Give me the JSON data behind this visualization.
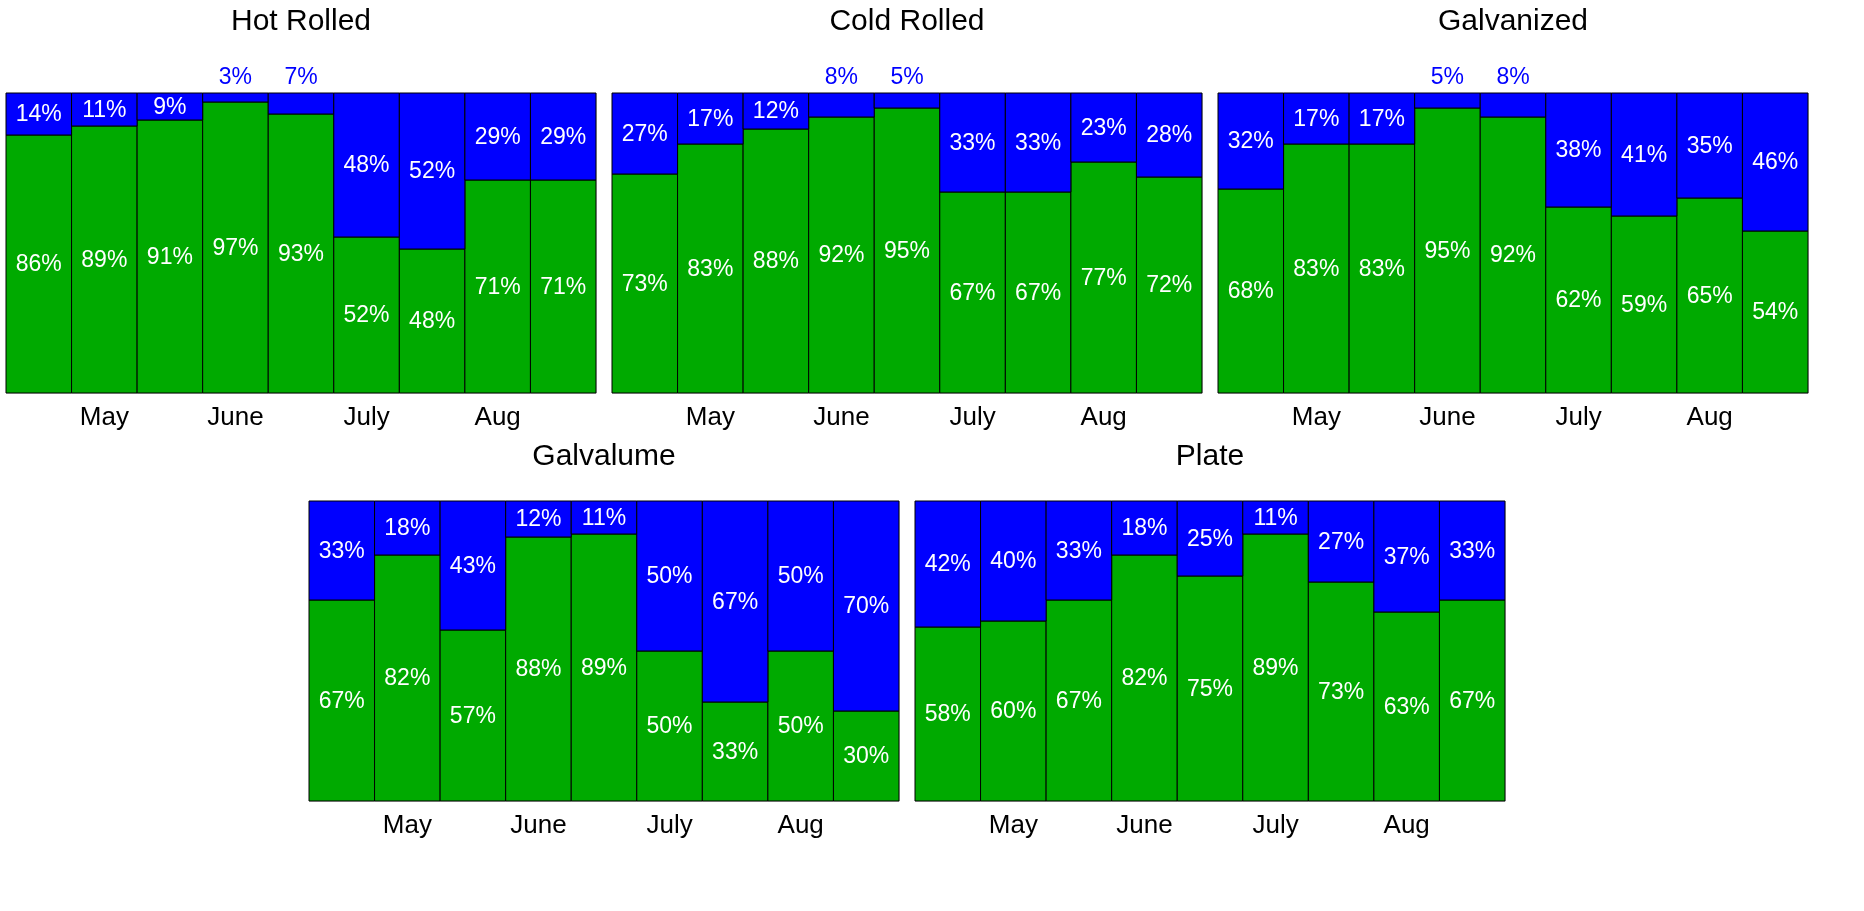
{
  "chart_data": [
    {
      "type": "bar",
      "title": "Hot Rolled",
      "stacked": true,
      "tick_labels": "x",
      "categories": [
        null,
        "May",
        null,
        "June",
        null,
        "July",
        null,
        "Aug",
        null
      ],
      "series": [
        {
          "color": "#00aa00",
          "values": [
            86,
            89,
            91,
            97,
            93,
            52,
            48,
            71,
            71
          ],
          "value_labels": [
            "86%",
            "89%",
            "91%",
            "97%",
            "93%",
            "52%",
            "48%",
            "71%",
            "71%"
          ]
        },
        {
          "color": "#0000ff",
          "values": [
            14,
            11,
            9,
            3,
            7,
            48,
            52,
            29,
            29
          ],
          "value_labels": [
            "14%",
            "11%",
            "9%",
            "3%",
            "7%",
            "48%",
            "52%",
            "29%",
            "29%"
          ]
        }
      ]
    },
    {
      "type": "bar",
      "title": "Cold Rolled",
      "stacked": true,
      "tick_labels": "x",
      "categories": [
        null,
        "May",
        null,
        "June",
        null,
        "July",
        null,
        "Aug",
        null
      ],
      "series": [
        {
          "color": "#00aa00",
          "values": [
            73,
            83,
            88,
            92,
            95,
            67,
            67,
            77,
            72
          ],
          "value_labels": [
            "73%",
            "83%",
            "88%",
            "92%",
            "95%",
            "67%",
            "67%",
            "77%",
            "72%"
          ]
        },
        {
          "color": "#0000ff",
          "values": [
            27,
            17,
            12,
            8,
            5,
            33,
            33,
            23,
            28
          ],
          "value_labels": [
            "27%",
            "17%",
            "12%",
            "8%",
            "5%",
            "33%",
            "33%",
            "23%",
            "28%"
          ]
        }
      ]
    },
    {
      "type": "bar",
      "title": "Galvanized",
      "stacked": true,
      "tick_labels": "x",
      "categories": [
        null,
        "May",
        null,
        "June",
        null,
        "July",
        null,
        "Aug",
        null
      ],
      "series": [
        {
          "color": "#00aa00",
          "values": [
            68,
            83,
            83,
            95,
            92,
            62,
            59,
            65,
            54
          ],
          "value_labels": [
            "68%",
            "83%",
            "83%",
            "95%",
            "92%",
            "62%",
            "59%",
            "65%",
            "54%"
          ]
        },
        {
          "color": "#0000ff",
          "values": [
            32,
            17,
            17,
            5,
            8,
            38,
            41,
            35,
            46
          ],
          "value_labels": [
            "32%",
            "17%",
            "17%",
            "5%",
            "8%",
            "38%",
            "41%",
            "35%",
            "46%"
          ]
        }
      ]
    },
    {
      "type": "bar",
      "title": "Galvalume",
      "stacked": true,
      "tick_labels": "x",
      "categories": [
        null,
        "May",
        null,
        "June",
        null,
        "July",
        null,
        "Aug",
        null
      ],
      "series": [
        {
          "color": "#00aa00",
          "values": [
            67,
            82,
            57,
            88,
            89,
            50,
            33,
            50,
            30
          ],
          "value_labels": [
            "67%",
            "82%",
            "57%",
            "88%",
            "89%",
            "50%",
            "33%",
            "50%",
            "30%"
          ]
        },
        {
          "color": "#0000ff",
          "values": [
            33,
            18,
            43,
            12,
            11,
            50,
            67,
            50,
            70
          ],
          "value_labels": [
            "33%",
            "18%",
            "43%",
            "12%",
            "11%",
            "50%",
            "67%",
            "50%",
            "70%"
          ]
        }
      ]
    },
    {
      "type": "bar",
      "title": "Plate",
      "stacked": true,
      "tick_labels": "x",
      "categories": [
        null,
        "May",
        null,
        "June",
        null,
        "July",
        null,
        "Aug",
        null
      ],
      "series": [
        {
          "color": "#00aa00",
          "values": [
            58,
            60,
            67,
            82,
            75,
            89,
            73,
            63,
            67
          ],
          "value_labels": [
            "58%",
            "60%",
            "67%",
            "82%",
            "75%",
            "89%",
            "73%",
            "63%",
            "67%"
          ]
        },
        {
          "color": "#0000ff",
          "values": [
            42,
            40,
            33,
            18,
            25,
            11,
            27,
            37,
            33
          ],
          "value_labels": [
            "42%",
            "40%",
            "33%",
            "18%",
            "25%",
            "11%",
            "27%",
            "37%",
            "33%"
          ]
        }
      ]
    }
  ]
}
